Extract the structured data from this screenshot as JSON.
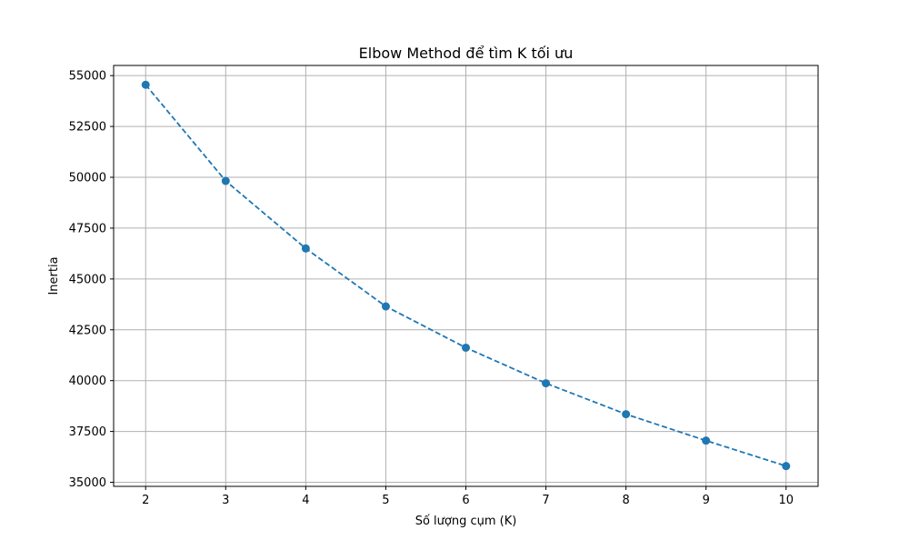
{
  "chart_data": {
    "type": "line",
    "title": "Elbow Method để tìm K tối ưu",
    "xlabel": "Số lượng cụm (K)",
    "ylabel": "Inertia",
    "x": [
      2,
      3,
      4,
      5,
      6,
      7,
      8,
      9,
      10
    ],
    "x_ticks": [
      "2",
      "3",
      "4",
      "5",
      "6",
      "7",
      "8",
      "9",
      "10"
    ],
    "y_ticks": [
      "35000",
      "37500",
      "40000",
      "42500",
      "45000",
      "47500",
      "50000",
      "52500",
      "55000"
    ],
    "xlim": [
      1.6,
      10.4
    ],
    "ylim": [
      34800,
      55500
    ],
    "grid": true,
    "series": [
      {
        "values": [
          54550,
          49820,
          46500,
          43650,
          41620,
          39870,
          38350,
          37050,
          35800
        ],
        "color": "#1f77b4",
        "line_style": "dashed",
        "marker": "circle"
      }
    ]
  }
}
